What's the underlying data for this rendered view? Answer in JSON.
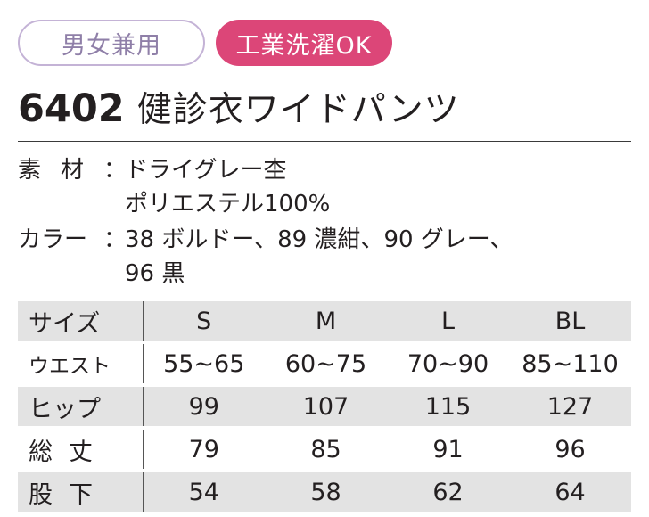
{
  "badges": {
    "gender": "男女兼用",
    "wash": "工業洗濯OK"
  },
  "title": {
    "code": "6402",
    "name": "健診衣ワイドパンツ"
  },
  "specs": {
    "material_label": "素材",
    "material_colon": "：",
    "material_line1": "ドライグレー杢",
    "material_line2": "ポリエステル100%",
    "color_label": "カラー",
    "color_colon": "：",
    "color_line1": "38 ボルドー、89 濃紺、90 グレー、",
    "color_line2": "96 黒"
  },
  "size_table": {
    "corner": "サイズ",
    "columns": [
      "S",
      "M",
      "L",
      "BL"
    ],
    "rows": [
      {
        "label": "ウエスト",
        "values": [
          "55~65",
          "60~75",
          "70~90",
          "85~110"
        ]
      },
      {
        "label": "ヒップ",
        "values": [
          "99",
          "107",
          "115",
          "127"
        ]
      },
      {
        "label": "総丈",
        "values": [
          "79",
          "85",
          "91",
          "96"
        ]
      },
      {
        "label": "股下",
        "values": [
          "54",
          "58",
          "62",
          "64"
        ]
      }
    ]
  }
}
